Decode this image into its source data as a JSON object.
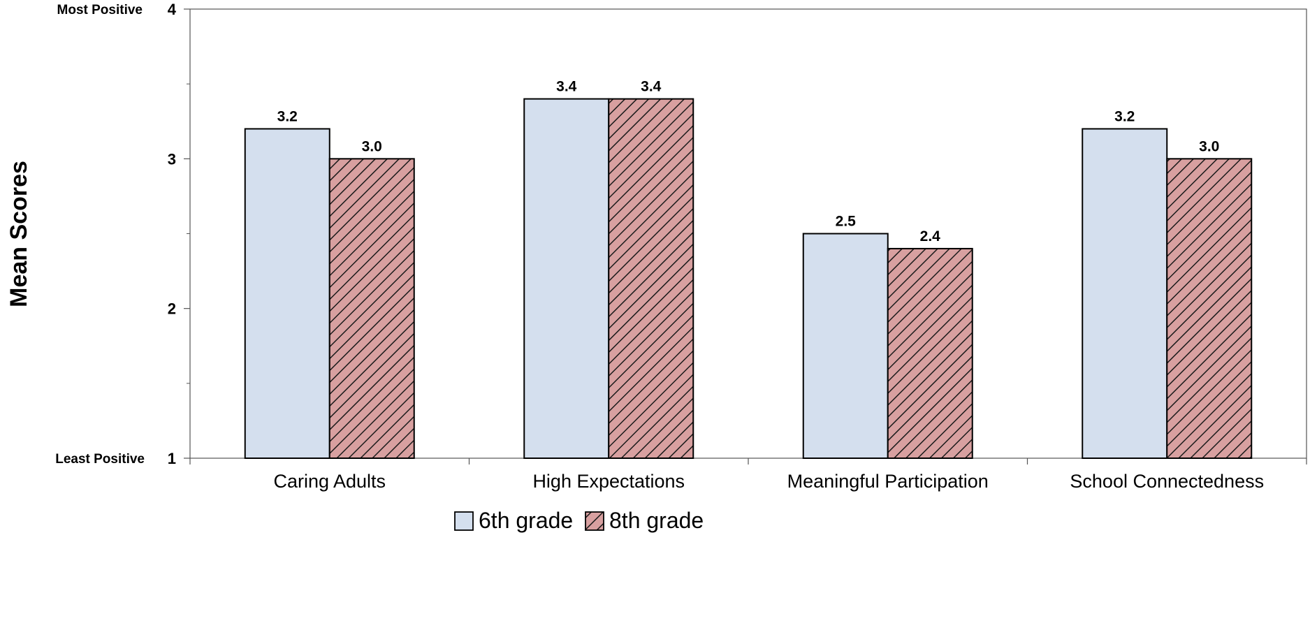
{
  "chart_data": {
    "type": "bar",
    "categories": [
      "Caring Adults",
      "High Expectations",
      "Meaningful Participation",
      "School Connectedness"
    ],
    "series": [
      {
        "name": "6th grade",
        "values": [
          3.2,
          3.4,
          2.5,
          3.2
        ],
        "labels": [
          "3.2",
          "3.4",
          "2.5",
          "3.2"
        ],
        "color": "#d4dfee",
        "pattern": "solid"
      },
      {
        "name": "8th grade",
        "values": [
          3.0,
          3.4,
          2.4,
          3.0
        ],
        "labels": [
          "3.0",
          "3.4",
          "2.4",
          "3.0"
        ],
        "color": "#d8a0a0",
        "pattern": "diagonal-hatch"
      }
    ],
    "ylabel": "Mean Scores",
    "ylim": [
      1,
      4
    ],
    "yticks": [
      "1",
      "2",
      "3",
      "4"
    ],
    "y_anchor_labels": {
      "top": "Most Positive",
      "bottom": "Least Positive"
    },
    "grid": false,
    "legend_position": "bottom-center"
  }
}
